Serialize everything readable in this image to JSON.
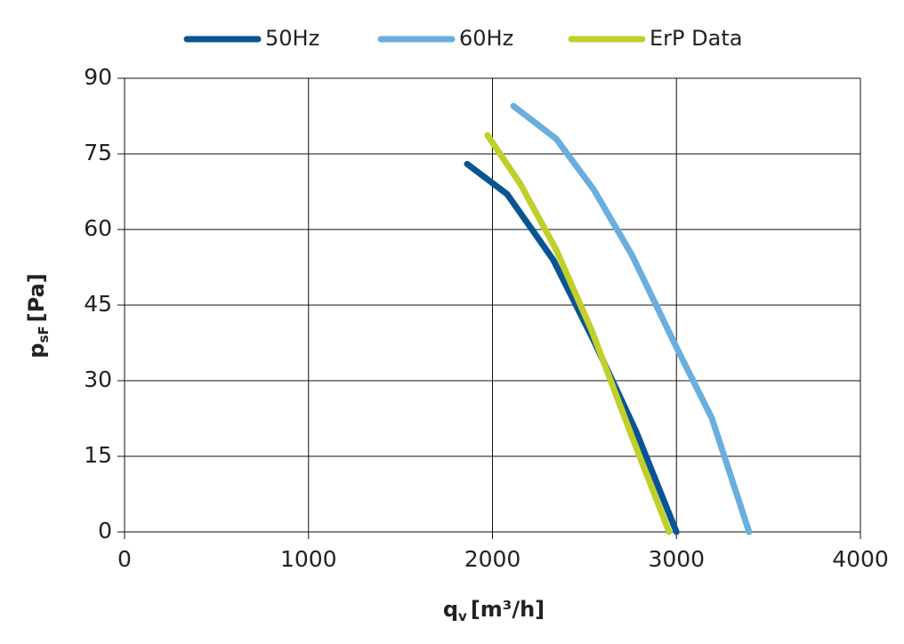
{
  "chart_data": {
    "type": "line",
    "x_label": {
      "main": "q",
      "sub": "v",
      "unit": "[m³/h]"
    },
    "y_label": {
      "main": "p",
      "sub": "sF",
      "unit": "[Pa]"
    },
    "xlim": [
      0,
      4000
    ],
    "xticks": [
      0,
      1000,
      2000,
      3000,
      4000
    ],
    "ylim": [
      0,
      90
    ],
    "yticks": [
      0,
      15,
      30,
      45,
      60,
      75,
      90
    ],
    "grid": true,
    "legend": "top",
    "series": [
      {
        "name": "50Hz",
        "color": "#0a5494",
        "x": [
          1862,
          2080,
          2330,
          2550,
          2780,
          3000
        ],
        "values": [
          73,
          67,
          54,
          38,
          20,
          0
        ]
      },
      {
        "name": "60Hz",
        "color": "#6aaee0",
        "x": [
          2114,
          2346,
          2549,
          2757,
          2999,
          3192,
          3395
        ],
        "values": [
          84.5,
          78,
          68,
          55,
          36.7,
          22.6,
          0
        ]
      },
      {
        "name": "ErP Data",
        "color": "#c1cf2a",
        "x": [
          1973,
          2152,
          2346,
          2539,
          2757,
          2960
        ],
        "values": [
          78.7,
          69,
          56,
          40,
          19,
          0
        ]
      }
    ]
  }
}
